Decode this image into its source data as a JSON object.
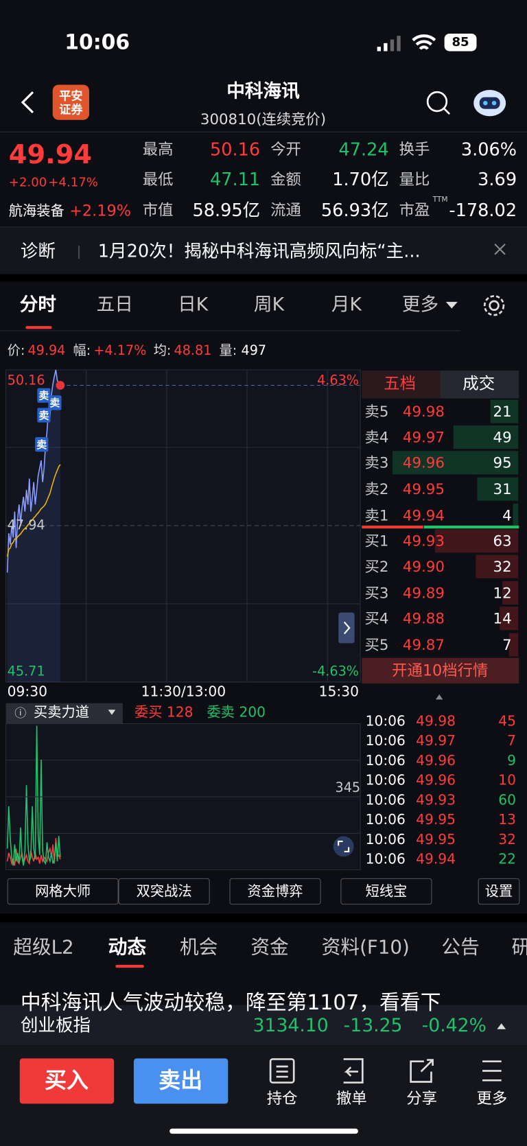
{
  "status_bar": {
    "time": "10:06",
    "battery": "85"
  },
  "header": {
    "logo": [
      "平安",
      "证券"
    ],
    "title": "中科海讯",
    "subtitle": "300810(连续竞价)"
  },
  "quote": {
    "price": "49.94",
    "change": "+2.00",
    "change_pct": "+4.17%",
    "sector": "航海装备",
    "sector_change": "+2.19%",
    "stats": [
      {
        "label": "最高",
        "value": "50.16",
        "color": "#ff3b3b"
      },
      {
        "label": "今开",
        "value": "47.24",
        "color": "#1fc16b"
      },
      {
        "label": "换手",
        "value": "3.06%",
        "color": "#ffffff"
      },
      {
        "label": "最低",
        "value": "47.11",
        "color": "#1fc16b"
      },
      {
        "label": "金额",
        "value": "1.70亿",
        "color": "#ffffff"
      },
      {
        "label": "量比",
        "value": "3.69",
        "color": "#ffffff"
      },
      {
        "label": "市值",
        "value": "58.95亿",
        "color": "#ffffff"
      },
      {
        "label": "流通",
        "value": "56.93亿",
        "color": "#ffffff"
      },
      {
        "label": "市盈",
        "sup": "TTM",
        "value": "-178.02",
        "color": "#ffffff"
      }
    ]
  },
  "banner": {
    "tag": "诊断",
    "text": "1月20次！揭秘中科海讯高频风向标“主..."
  },
  "chart_tabs": {
    "items": [
      "分时",
      "五日",
      "日K",
      "周K",
      "月K",
      "更多"
    ],
    "active": 0
  },
  "info_line": [
    {
      "label": "价:",
      "value": "49.94"
    },
    {
      "label": "幅:",
      "value": "+4.17%"
    },
    {
      "label": "均:",
      "value": "48.81"
    },
    {
      "label": "量:",
      "value": "497"
    }
  ],
  "intraday": {
    "type": "line",
    "ylim": [
      45.71,
      50.16
    ],
    "yticks": [
      50.16,
      47.94,
      45.71
    ],
    "pct_labels": [
      "4.63%",
      "-4.63%"
    ],
    "xlabels": [
      "09:30",
      "11:30/13:00",
      "15:30"
    ],
    "price": [
      47.27,
      47.83,
      47.67,
      47.93,
      47.77,
      48.14,
      47.62,
      48.03,
      48.24,
      47.98,
      48.19,
      48.35,
      48.14,
      48.45,
      48.24,
      48.61,
      48.14,
      48.35,
      48.56,
      48.24,
      48.45,
      48.66,
      48.76,
      48.87,
      48.56,
      48.76,
      49.08,
      49.28,
      49.6,
      49.49,
      49.81,
      49.96,
      50.07,
      50.16,
      50.01,
      49.96,
      49.94
    ],
    "average": [
      47.5,
      47.6,
      47.62,
      47.68,
      47.7,
      47.75,
      47.75,
      47.78,
      47.8,
      47.82,
      47.85,
      47.88,
      47.9,
      47.92,
      47.95,
      47.97,
      48.0,
      48.02,
      48.05,
      48.07,
      48.1,
      48.12,
      48.15,
      48.18,
      48.2,
      48.22,
      48.25,
      48.3,
      48.35,
      48.4,
      48.48,
      48.55,
      48.62,
      48.68,
      48.73,
      48.78,
      48.81
    ],
    "markers": [
      "卖",
      "卖",
      "卖",
      "卖"
    ]
  },
  "volume_panel": {
    "title": "买卖力道",
    "totals": [
      "128",
      "200"
    ],
    "ylim": [
      0,
      690
    ],
    "yticks": [
      345
    ],
    "series": [
      {
        "name": "委买",
        "color": "#ff3b3b",
        "values": [
          40,
          80,
          60,
          30,
          50,
          20,
          100,
          40,
          30,
          60,
          80,
          30,
          50,
          70,
          40,
          30,
          90,
          60,
          40,
          80,
          50,
          60,
          30,
          70,
          40,
          60,
          50,
          40,
          80,
          100,
          60,
          120,
          30,
          150,
          60,
          70,
          50
        ]
      },
      {
        "name": "委卖",
        "color": "#1fc16b",
        "values": [
          100,
          300,
          150,
          60,
          20,
          120,
          40,
          80,
          30,
          200,
          60,
          20,
          90,
          400,
          120,
          40,
          60,
          300,
          100,
          50,
          680,
          160,
          70,
          520,
          90,
          40,
          30,
          130,
          60,
          40,
          80,
          30,
          50,
          130,
          40,
          160,
          60
        ]
      }
    ]
  },
  "order_book": {
    "tabs": [
      "五档",
      "成交"
    ],
    "asks": [
      {
        "label": "卖5",
        "price": "49.98",
        "volume": 21
      },
      {
        "label": "卖4",
        "price": "49.97",
        "volume": 49
      },
      {
        "label": "卖3",
        "price": "49.96",
        "volume": 95
      },
      {
        "label": "卖2",
        "price": "49.95",
        "volume": 31
      },
      {
        "label": "卖1",
        "price": "49.94",
        "volume": 4
      }
    ],
    "bids": [
      {
        "label": "买1",
        "price": "49.93",
        "volume": 63
      },
      {
        "label": "买2",
        "price": "49.90",
        "volume": 32
      },
      {
        "label": "买3",
        "price": "49.89",
        "volume": 12
      },
      {
        "label": "买4",
        "price": "49.88",
        "volume": 14
      },
      {
        "label": "买5",
        "price": "49.87",
        "volume": 7
      }
    ],
    "upgrade": "开通10档行情"
  },
  "trades": [
    {
      "time": "10:06",
      "price": "49.98",
      "volume": "45",
      "color": "#ff3b3b"
    },
    {
      "time": "10:06",
      "price": "49.97",
      "volume": "7",
      "color": "#ff3b3b"
    },
    {
      "time": "10:06",
      "price": "49.96",
      "volume": "9",
      "color": "#1fc16b"
    },
    {
      "time": "10:06",
      "price": "49.96",
      "volume": "10",
      "color": "#ff3b3b"
    },
    {
      "time": "10:06",
      "price": "49.93",
      "volume": "60",
      "color": "#1fc16b"
    },
    {
      "time": "10:06",
      "price": "49.95",
      "volume": "13",
      "color": "#ff3b3b"
    },
    {
      "time": "10:06",
      "price": "49.95",
      "volume": "32",
      "color": "#ff3b3b"
    },
    {
      "time": "10:06",
      "price": "49.94",
      "volume": "22",
      "color": "#1fc16b"
    }
  ],
  "tools": [
    "网格大师",
    "双突战法",
    "资金博弈",
    "短线宝",
    "设置"
  ],
  "news_tabs": {
    "items": [
      "超级L2",
      "动态",
      "机会",
      "资金",
      "资料(F10)",
      "公告",
      "研"
    ],
    "active": 1
  },
  "news_headline": "中科海讯人气波动较稳，降至第1107，看看下",
  "index_bar": {
    "name": "创业板指",
    "value": "3134.10",
    "change": "-13.25",
    "change_pct": "-0.42%"
  },
  "actions": {
    "buy": "买入",
    "sell": "卖出",
    "items": [
      "持仓",
      "撤单",
      "分享",
      "更多"
    ]
  }
}
